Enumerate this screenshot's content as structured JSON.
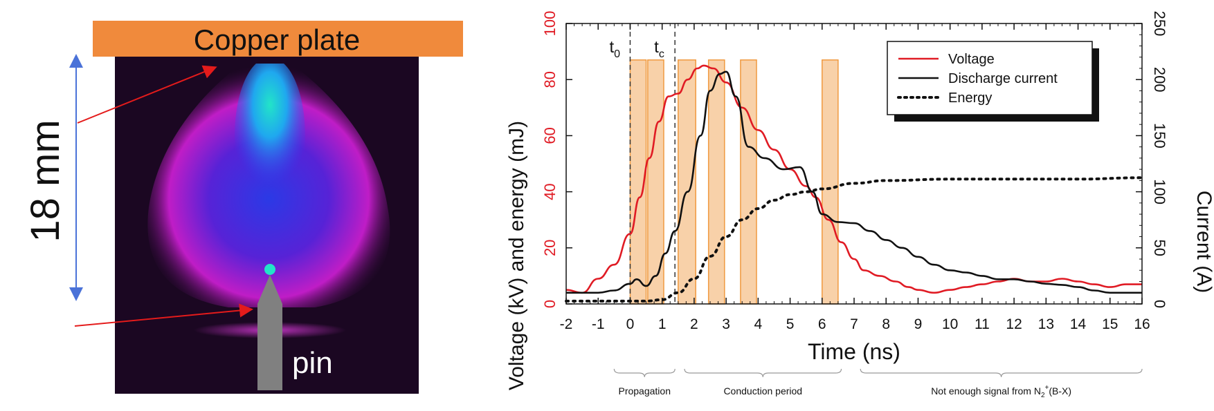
{
  "left_panel": {
    "plate_label": "Copper plate",
    "distance_label": "18 mm",
    "pin_label": "pin",
    "colors": {
      "plate": "#f08a3c",
      "glow_outer": "#c81ecf",
      "glow_inner": "#2c3cf0",
      "glow_core": "#22e4c8",
      "arrow": "#e41b1b",
      "dimension": "#4a72d8",
      "pin": "#808080",
      "background": "#1b0722"
    }
  },
  "chart_data": {
    "type": "line",
    "xlabel": "Time (ns)",
    "ylabel_left": "Voltage (kV) and energy (mJ)",
    "ylabel_right": "Current (A)",
    "xlim": [
      -2,
      16
    ],
    "ylim_left": [
      0,
      100
    ],
    "ylim_right": [
      0,
      250
    ],
    "x_ticks": [
      -2,
      -1,
      0,
      1,
      2,
      3,
      4,
      5,
      6,
      7,
      8,
      9,
      10,
      11,
      12,
      13,
      14,
      15,
      16
    ],
    "y_ticks_left": [
      0,
      20,
      40,
      60,
      80,
      100
    ],
    "y_ticks_right": [
      0,
      50,
      100,
      150,
      200,
      250
    ],
    "grid": false,
    "legend_position": "top-right",
    "legend": [
      {
        "label": "Voltage",
        "style": "solid",
        "color": "#e01b24"
      },
      {
        "label": "Discharge current",
        "style": "solid",
        "color": "#111111"
      },
      {
        "label": "Energy",
        "style": "dotted",
        "color": "#111111"
      }
    ],
    "vlines": [
      {
        "x": 0,
        "label": "t",
        "sub": "0"
      },
      {
        "x": 1.4,
        "label": "t",
        "sub": "c"
      }
    ],
    "shaded_bands": [
      [
        0,
        0.5
      ],
      [
        0.55,
        1.05
      ],
      [
        1.5,
        2.05
      ],
      [
        2.45,
        2.95
      ],
      [
        3.45,
        3.95
      ],
      [
        6.0,
        6.5
      ]
    ],
    "band_top": 87,
    "series": [
      {
        "name": "Voltage",
        "axis": "left",
        "color": "#e01b24",
        "style": "solid",
        "x": [
          -2,
          -1.5,
          -1,
          -0.5,
          0,
          0.3,
          0.6,
          0.9,
          1.2,
          1.5,
          1.8,
          2.1,
          2.3,
          2.6,
          3.0,
          3.5,
          4.0,
          4.5,
          5.0,
          5.5,
          5.8,
          6.2,
          6.6,
          7.0,
          7.3,
          7.8,
          8.3,
          8.7,
          9.0,
          9.5,
          10,
          10.5,
          11,
          11.5,
          12,
          12.5,
          13,
          13.5,
          14,
          14.5,
          15,
          15.5,
          16
        ],
        "y": [
          5,
          4,
          9,
          14,
          25,
          38,
          52,
          65,
          74,
          75,
          80,
          84,
          85,
          84,
          79,
          70,
          62,
          55,
          48,
          42,
          38,
          30,
          22,
          16,
          12,
          10,
          8,
          6,
          5,
          4,
          5,
          6,
          7,
          8,
          9,
          8,
          8,
          9,
          8,
          7,
          6,
          7,
          7
        ]
      },
      {
        "name": "Discharge current",
        "axis": "right",
        "color": "#111111",
        "style": "solid",
        "x": [
          -2,
          -1.5,
          -1,
          -0.5,
          0,
          0.2,
          0.5,
          0.8,
          1.1,
          1.4,
          1.8,
          2.2,
          2.5,
          2.8,
          3.0,
          3.3,
          3.7,
          4.2,
          4.8,
          5.3,
          5.7,
          6.0,
          6.5,
          7.0,
          7.5,
          8.0,
          8.5,
          9.0,
          9.5,
          10,
          10.5,
          11,
          11.5,
          12,
          12.5,
          13,
          13.5,
          14,
          14.5,
          15,
          15.5,
          16
        ],
        "y": [
          10,
          10,
          10,
          12,
          18,
          22,
          16,
          25,
          45,
          65,
          100,
          150,
          190,
          205,
          207,
          185,
          140,
          130,
          120,
          122,
          100,
          80,
          73,
          72,
          65,
          57,
          50,
          42,
          35,
          30,
          28,
          25,
          22,
          22,
          20,
          18,
          17,
          15,
          12,
          10,
          10,
          10
        ]
      },
      {
        "name": "Energy",
        "axis": "left",
        "color": "#111111",
        "style": "dotted",
        "x": [
          -2,
          -1,
          0,
          0.5,
          1.0,
          1.5,
          2.0,
          2.5,
          3.0,
          3.5,
          4.0,
          4.5,
          5.0,
          5.5,
          6.0,
          7.0,
          8.0,
          10,
          12,
          14,
          16
        ],
        "y": [
          1,
          1,
          1,
          1,
          1.5,
          4,
          9,
          17,
          24,
          30,
          34,
          37,
          39,
          40,
          41,
          43,
          44,
          44.5,
          44.5,
          44.5,
          45
        ]
      }
    ],
    "annotations": [
      {
        "text": "Propagation",
        "x_range": [
          -0.5,
          1.4
        ]
      },
      {
        "text": "Conduction period",
        "x_range": [
          1.7,
          6.6
        ]
      },
      {
        "text": "Not enough signal from N",
        "subscript": "2",
        "superscript": "+",
        "suffix": "(B-X)",
        "x_range": [
          7.2,
          16
        ]
      }
    ]
  }
}
